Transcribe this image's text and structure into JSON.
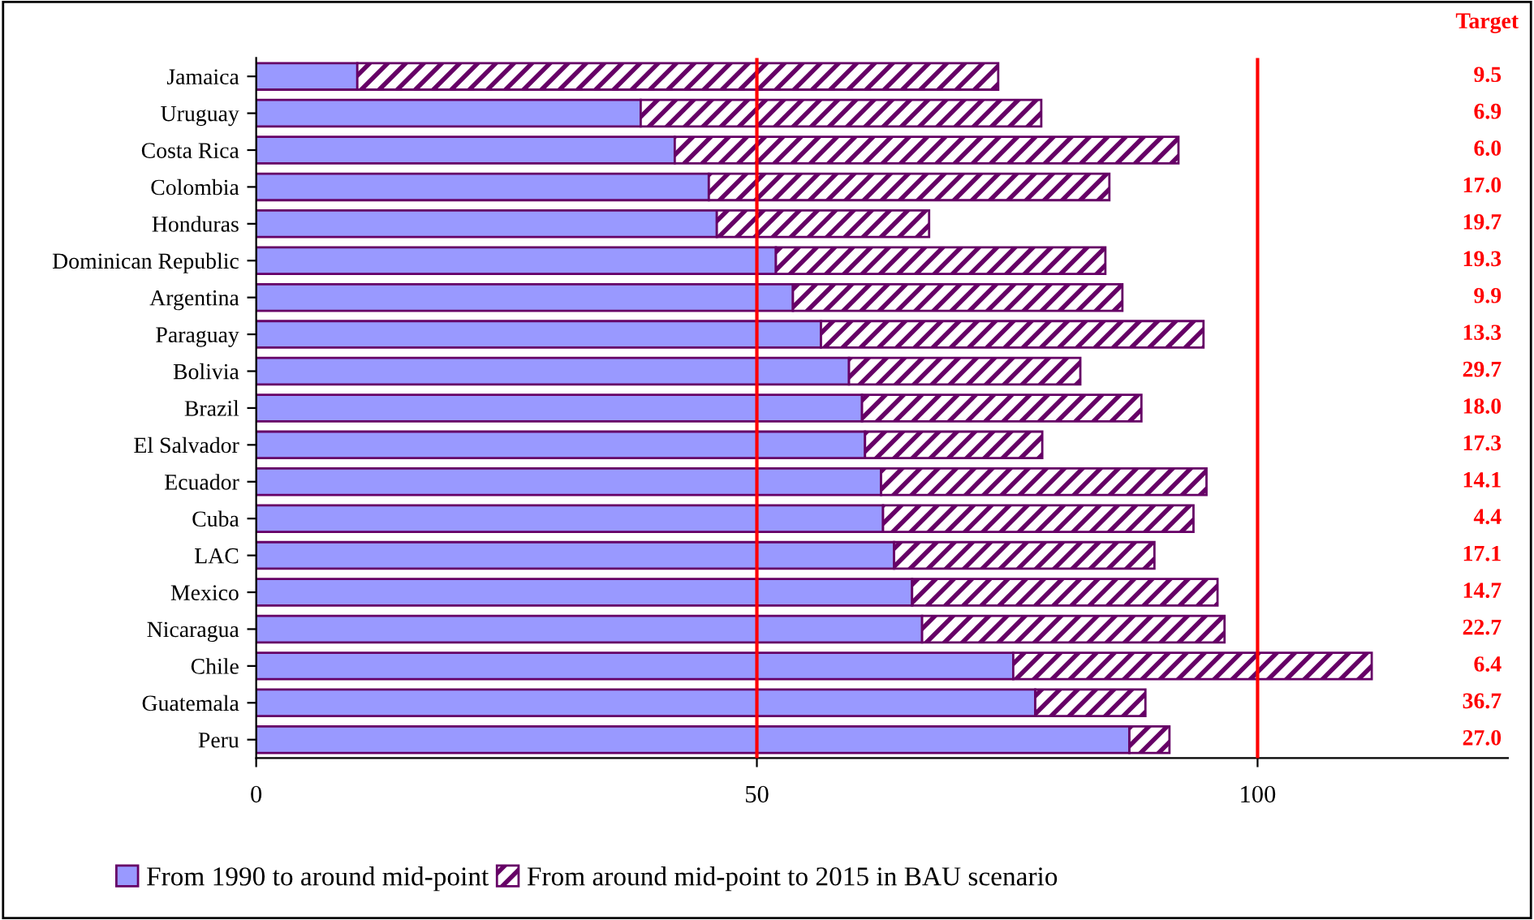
{
  "chart_data": {
    "type": "bar",
    "orientation": "horizontal",
    "stacked": true,
    "categories": [
      "Jamaica",
      "Uruguay",
      "Costa Rica",
      "Colombia",
      "Honduras",
      "Dominican Republic",
      "Argentina",
      "Paraguay",
      "Bolivia",
      "Brazil",
      "El Salvador",
      "Ecuador",
      "Cuba",
      "LAC",
      "Mexico",
      "Nicaragua",
      "Chile",
      "Guatemala",
      "Peru"
    ],
    "series": [
      {
        "name": "From 1990 to around mid-point",
        "color": "#9999ff",
        "values": [
          10.1,
          38.4,
          41.8,
          45.2,
          46.0,
          51.9,
          53.6,
          56.4,
          59.2,
          60.5,
          60.8,
          62.4,
          62.6,
          63.7,
          65.5,
          66.5,
          75.6,
          77.8,
          87.2
        ]
      },
      {
        "name": "From around mid-point to 2015 in BAU scenario",
        "color": "#660066",
        "values": [
          64.0,
          40.0,
          50.3,
          40.0,
          21.2,
          32.9,
          32.9,
          38.2,
          23.1,
          27.9,
          17.7,
          32.5,
          31.0,
          26.0,
          30.5,
          30.2,
          35.8,
          11.0,
          4.0
        ]
      }
    ],
    "xlim": [
      0,
      125
    ],
    "xticks": [
      0,
      50,
      100
    ],
    "ref_lines": [
      {
        "axis": "x",
        "value": 50,
        "color": "#ff0000"
      },
      {
        "axis": "x",
        "value": 100,
        "color": "#ff0000"
      }
    ],
    "annotations": [
      "Target",
      "9.5",
      "6.9",
      "6.0",
      "17.0",
      "19.7",
      "19.3",
      "9.9",
      "13.3",
      "29.7",
      "18.0",
      "17.3",
      "14.1",
      "4.4",
      "17.1",
      "14.7",
      "22.7",
      "6.4",
      "36.7",
      "27.0"
    ],
    "grid": false,
    "legend": "bottom"
  }
}
